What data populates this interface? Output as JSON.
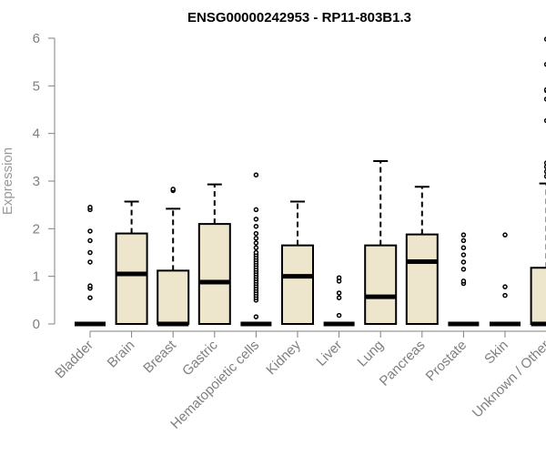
{
  "chart_data": {
    "type": "box",
    "title": "ENSG00000242953 - RP11-803B1.3",
    "xlabel": "",
    "ylabel": "Expression",
    "ylim": [
      0,
      6
    ],
    "yticks": [
      0,
      1,
      2,
      3,
      4,
      5,
      6
    ],
    "grid": false,
    "colors": {
      "box_fill": "#ede6cd",
      "box_stroke": "#000000",
      "axis": "#808080",
      "tick_text": "#7f7f7f"
    },
    "categories": [
      "Bladder",
      "Brain",
      "Breast",
      "Gastric",
      "Hematopoietic cells",
      "Kidney",
      "Liver",
      "Lung",
      "Pancreas",
      "Prostate",
      "Skin",
      "Unknown / Other"
    ],
    "boxes": [
      {
        "category": "Bladder",
        "whisker_low": 0,
        "q1": 0,
        "median": 0,
        "q3": 0,
        "whisker_high": 0,
        "outliers": [
          0.55,
          0.75,
          0.8,
          1.3,
          1.5,
          1.75,
          1.95,
          2.4,
          2.45
        ]
      },
      {
        "category": "Brain",
        "whisker_low": 0,
        "q1": 0,
        "median": 1.05,
        "q3": 1.9,
        "whisker_high": 2.57,
        "outliers": []
      },
      {
        "category": "Breast",
        "whisker_low": 0,
        "q1": 0,
        "median": 0,
        "q3": 1.12,
        "whisker_high": 2.42,
        "outliers": [
          2.8,
          2.83
        ]
      },
      {
        "category": "Gastric",
        "whisker_low": 0,
        "q1": 0,
        "median": 0.88,
        "q3": 2.1,
        "whisker_high": 2.93,
        "outliers": []
      },
      {
        "category": "Hematopoietic cells",
        "whisker_low": 0,
        "q1": 0,
        "median": 0,
        "q3": 0,
        "whisker_high": 0,
        "outliers": [
          0.15,
          0.5,
          0.55,
          0.6,
          0.65,
          0.7,
          0.75,
          0.8,
          0.85,
          0.9,
          0.95,
          1.0,
          1.05,
          1.1,
          1.15,
          1.2,
          1.25,
          1.3,
          1.35,
          1.4,
          1.45,
          1.5,
          1.6,
          1.7,
          1.8,
          1.9,
          2.05,
          2.2,
          2.4,
          3.13
        ]
      },
      {
        "category": "Kidney",
        "whisker_low": 0,
        "q1": 0,
        "median": 1.0,
        "q3": 1.65,
        "whisker_high": 2.57,
        "outliers": []
      },
      {
        "category": "Liver",
        "whisker_low": 0,
        "q1": 0,
        "median": 0,
        "q3": 0,
        "whisker_high": 0,
        "outliers": [
          0.18,
          0.55,
          0.65,
          0.9,
          0.97
        ]
      },
      {
        "category": "Lung",
        "whisker_low": 0,
        "q1": 0,
        "median": 0.57,
        "q3": 1.65,
        "whisker_high": 3.42,
        "outliers": []
      },
      {
        "category": "Pancreas",
        "whisker_low": 0,
        "q1": 0,
        "median": 1.31,
        "q3": 1.88,
        "whisker_high": 2.88,
        "outliers": []
      },
      {
        "category": "Prostate",
        "whisker_low": 0,
        "q1": 0,
        "median": 0,
        "q3": 0,
        "whisker_high": 0,
        "outliers": [
          0.85,
          0.9,
          1.15,
          1.3,
          1.45,
          1.6,
          1.75,
          1.87
        ]
      },
      {
        "category": "Skin",
        "whisker_low": 0,
        "q1": 0,
        "median": 0,
        "q3": 0,
        "whisker_high": 0,
        "outliers": [
          0.6,
          0.78,
          1.87
        ]
      },
      {
        "category": "Unknown / Other",
        "whisker_low": 0,
        "q1": 0,
        "median": 0,
        "q3": 1.18,
        "whisker_high": 2.95,
        "outliers": [
          3.1,
          3.2,
          3.3,
          3.38,
          4.27,
          4.72,
          4.9,
          4.92,
          5.45,
          5.98
        ]
      }
    ]
  }
}
